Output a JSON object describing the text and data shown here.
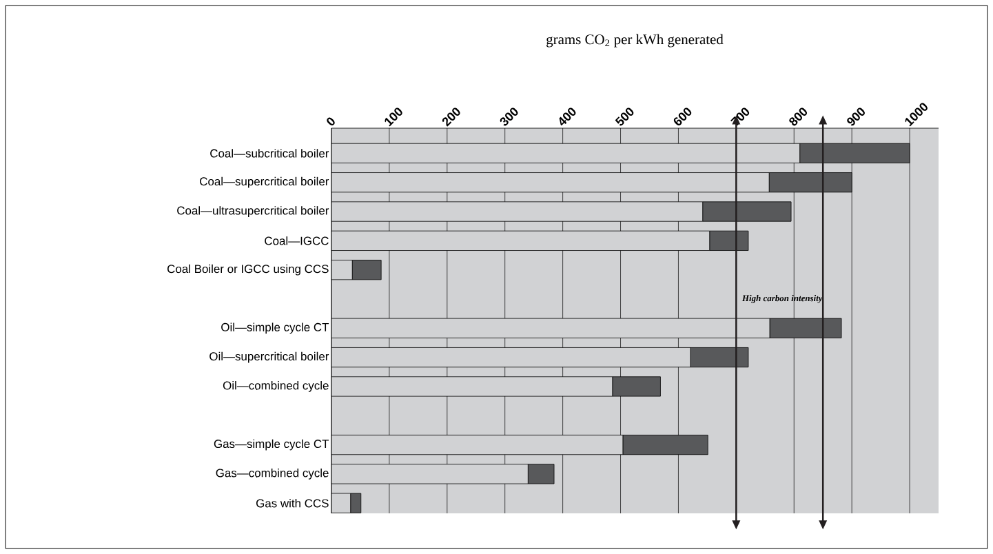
{
  "chart_data": {
    "type": "bar",
    "orientation": "horizontal",
    "stacked": true,
    "title": "grams CO$_{2}$ per kWh generated",
    "categories": [
      "Coal—subcritical boiler",
      "Coal—supercritical boiler",
      "Coal—ultrasupercritical boiler",
      "Coal—IGCC",
      "Coal Boiler or IGCC using CCS",
      null,
      "Oil—simple cycle CT",
      "Oil—supercritical boiler",
      "Oil—combined cycle",
      null,
      "Gas—simple cycle CT",
      "Gas—combined cycle",
      "Gas with CCS"
    ],
    "series": [
      {
        "color": "#d1d2d4",
        "values": [
          810,
          757,
          642,
          654,
          36,
          null,
          758,
          621,
          486,
          null,
          504,
          340,
          33
        ]
      },
      {
        "color": "#58595b",
        "values": [
          190,
          143,
          153,
          67,
          50,
          null,
          124,
          100,
          83,
          null,
          147,
          45,
          18
        ]
      }
    ],
    "xlim": [
      0,
      1050
    ],
    "xticks": [
      0,
      100,
      200,
      300,
      400,
      500,
      600,
      700,
      800,
      900,
      1000
    ],
    "grid": "x",
    "ref_lines": [
      {
        "axis": "x",
        "value": 700,
        "color": "#231f20"
      },
      {
        "axis": "x",
        "value": 850,
        "color": "#231f20"
      }
    ],
    "annotations": [
      "High carbon intensity"
    ]
  }
}
